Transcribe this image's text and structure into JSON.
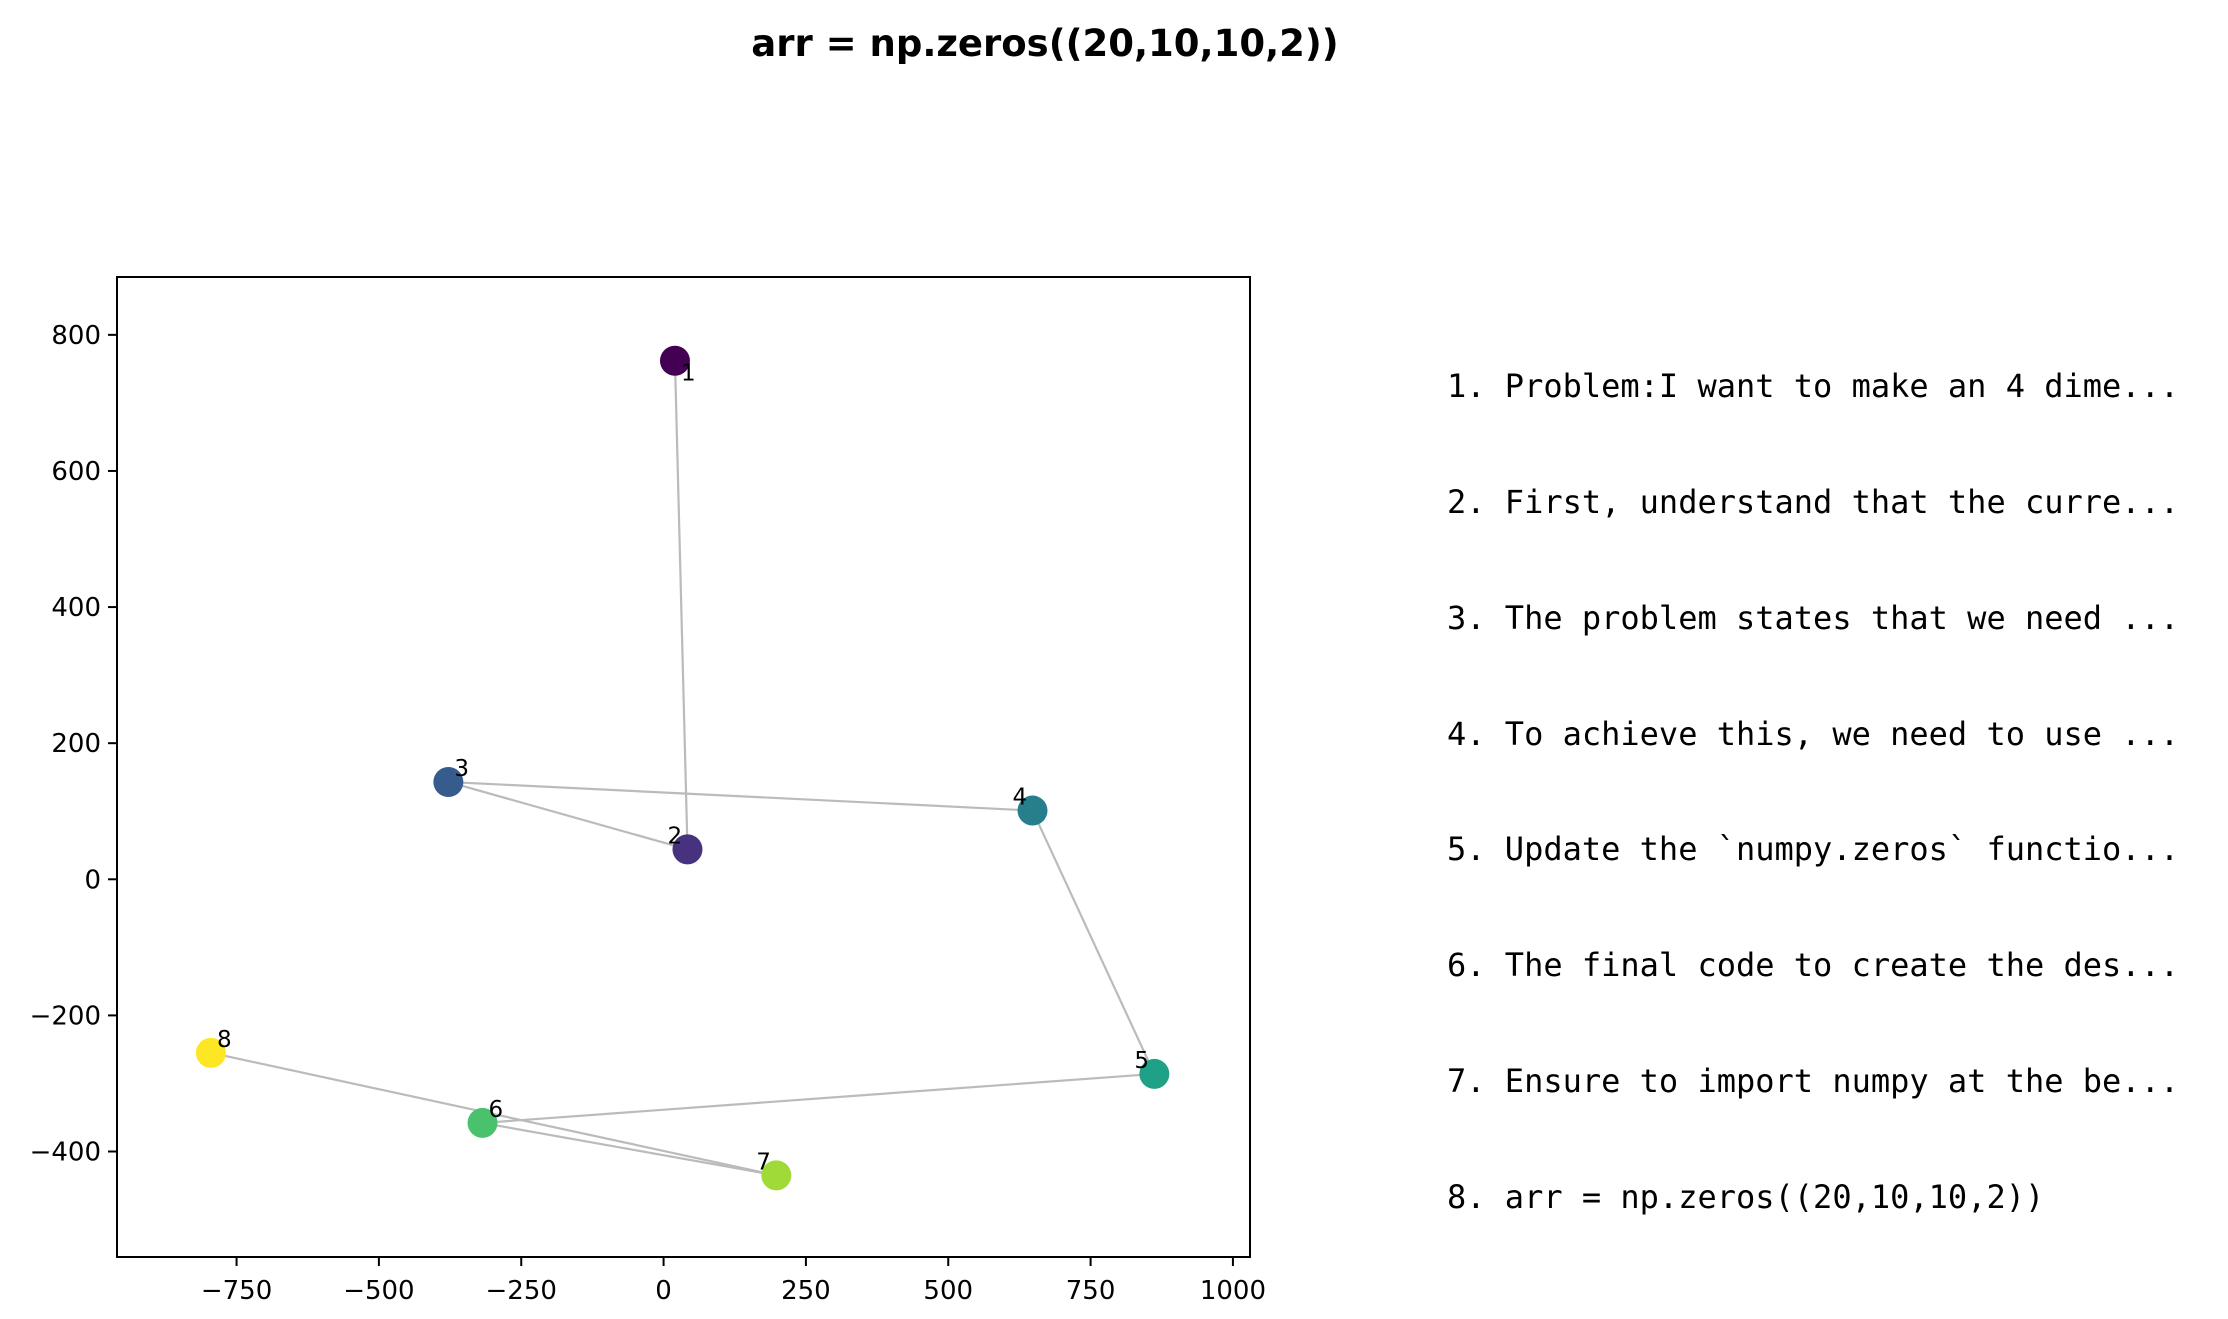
{
  "title": "arr = np.zeros((20,10,10,2))",
  "steps": [
    "1. Problem:I want to make an 4 dime...",
    "2. First, understand that the curre...",
    "3. The problem states that we need ...",
    "4. To achieve this, we need to use ...",
    "5. Update the `numpy.zeros` functio...",
    "6. The final code to create the des...",
    "7. Ensure to import numpy at the be...",
    "8. arr = np.zeros((20,10,10,2))"
  ],
  "chart_data": {
    "type": "scatter",
    "title": "arr = np.zeros((20,10,10,2))",
    "xlabel": "",
    "ylabel": "",
    "xlim": [
      -960,
      1030
    ],
    "ylim": [
      -555,
      885
    ],
    "xticks": [
      -750,
      -500,
      -250,
      0,
      250,
      500,
      750,
      1000
    ],
    "yticks": [
      -400,
      -200,
      0,
      200,
      400,
      600,
      800
    ],
    "grid": false,
    "connected": true,
    "line_color": "#bbbbbb",
    "points": [
      {
        "label": "1",
        "x": 20,
        "y": 762,
        "color": "#440154"
      },
      {
        "label": "2",
        "x": 42,
        "y": 44,
        "color": "#46327e"
      },
      {
        "label": "3",
        "x": -378,
        "y": 143,
        "color": "#365c8d"
      },
      {
        "label": "4",
        "x": 648,
        "y": 101,
        "color": "#277f8e"
      },
      {
        "label": "5",
        "x": 862,
        "y": -286,
        "color": "#1fa187"
      },
      {
        "label": "6",
        "x": -318,
        "y": -358,
        "color": "#4ac16d"
      },
      {
        "label": "7",
        "x": 198,
        "y": -435,
        "color": "#a0da39"
      },
      {
        "label": "8",
        "x": -795,
        "y": -255,
        "color": "#fde725"
      }
    ]
  }
}
